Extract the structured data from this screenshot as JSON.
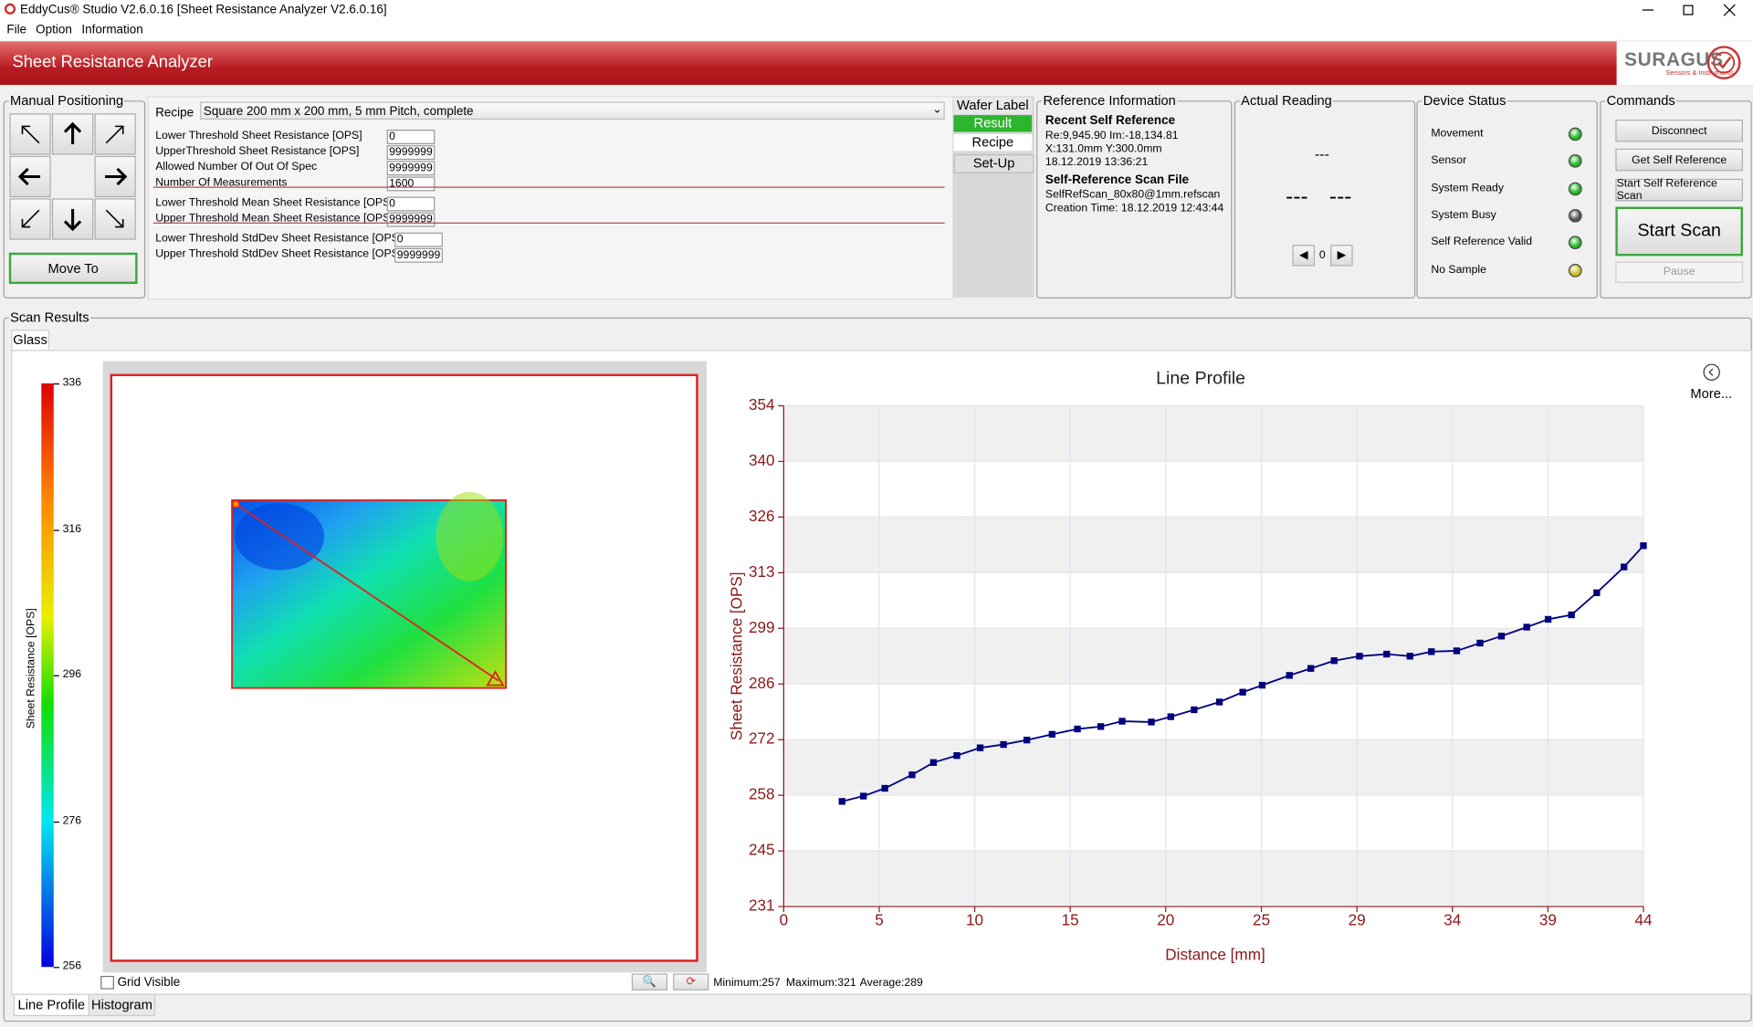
{
  "window": {
    "title": "EddyCus® Studio V2.6.0.16 [Sheet Resistance Analyzer V2.6.0.16]",
    "menu": [
      "File",
      "Option",
      "Information"
    ]
  },
  "header": {
    "title": "Sheet Resistance Analyzer",
    "logo": "SURAGUS",
    "logo_sub": "Sensors & Instruments"
  },
  "manual_positioning": {
    "title": "Manual Positioning",
    "button": "Move To"
  },
  "recipe": {
    "label": "Recipe",
    "value": "Square 200 mm x 200 mm, 5 mm Pitch, complete",
    "groups": [
      [
        {
          "label": "Lower Threshold Sheet Resistance [OPS]",
          "value": "0"
        },
        {
          "label": "UpperThreshold Sheet Resistance [OPS]",
          "value": "9999999"
        },
        {
          "label": "Allowed Number Of Out Of Spec",
          "value": "9999999"
        },
        {
          "label": "Number Of Measurements",
          "value": "1600"
        }
      ],
      [
        {
          "label": "Lower Threshold Mean Sheet Resistance [OPS]",
          "value": "0"
        },
        {
          "label": "Upper Threshold Mean Sheet Resistance [OPS]",
          "value": "9999999"
        }
      ],
      [
        {
          "label": "Lower Threshold StdDev Sheet Resistance [OPS]",
          "value": "0"
        },
        {
          "label": "Upper Threshold StdDev Sheet Resistance [OPS]",
          "value": "9999999"
        }
      ]
    ],
    "tabs": [
      "Wafer Label",
      "Result",
      "Recipe",
      "Set-Up"
    ]
  },
  "reference": {
    "title": "Reference Information",
    "recent_title": "Recent Self Reference",
    "recent": [
      "Re:9,945.90 Im:-18,134.81",
      "X:131.0mm Y:300.0mm",
      "18.12.2019 13:36:21"
    ],
    "file_title": "Self-Reference Scan File",
    "file": [
      "SelfRefScan_80x80@1mm.refscan",
      "Creation Time: 18.12.2019 12:43:44"
    ]
  },
  "actual_reading": {
    "title": "Actual Reading",
    "top": "---",
    "bottom": [
      "---",
      "---"
    ],
    "index": "0"
  },
  "device_status": {
    "title": "Device Status",
    "items": [
      {
        "label": "Movement",
        "color": "#22b822"
      },
      {
        "label": "Sensor",
        "color": "#22b822"
      },
      {
        "label": "System Ready",
        "color": "#22b822"
      },
      {
        "label": "System Busy",
        "color": "#555555"
      },
      {
        "label": "Self Reference Valid",
        "color": "#22b822"
      },
      {
        "label": "No Sample",
        "color": "#c8c020"
      }
    ]
  },
  "commands": {
    "title": "Commands",
    "buttons": [
      "Disconnect",
      "Get Self Reference",
      "Start Self Reference Scan"
    ],
    "start": "Start Scan",
    "pause": "Pause"
  },
  "scan_results": {
    "title": "Scan Results",
    "tab": "Glass",
    "grid_visible": "Grid Visible",
    "stats": [
      "Minimum:257",
      "Maximum:321",
      "Average:289"
    ],
    "bottom_tabs": [
      "Line Profile",
      "Histogram"
    ],
    "more": "More..."
  },
  "colorbar": {
    "label": "Sheet Resistance [OPS]",
    "lim": [
      256,
      336
    ],
    "ticks": [
      256,
      276,
      296,
      316,
      336
    ]
  },
  "chart_data": {
    "type": "line",
    "title": "Line Profile",
    "x_label": "Distance [mm]",
    "y_label": "Sheet Resistance [OPS]",
    "color": "#00007f",
    "grid": true,
    "x": [
      3.0,
      4.1,
      5.2,
      6.6,
      7.7,
      8.9,
      10.1,
      11.3,
      12.5,
      13.8,
      15.1,
      16.3,
      17.4,
      18.9,
      19.9,
      21.1,
      22.4,
      23.6,
      24.6,
      26.0,
      27.1,
      28.3,
      29.6,
      31.0,
      32.2,
      33.3,
      34.6,
      35.8,
      36.9,
      38.2,
      39.3,
      40.5,
      41.8,
      43.2,
      44.2
    ],
    "values": [
      256.9,
      258.2,
      260.1,
      263.4,
      266.4,
      268.1,
      270.0,
      270.8,
      271.9,
      273.3,
      274.6,
      275.2,
      276.5,
      276.3,
      277.6,
      279.3,
      281.2,
      283.6,
      285.3,
      287.7,
      289.4,
      291.3,
      292.4,
      292.9,
      292.4,
      293.5,
      293.7,
      295.6,
      297.3,
      299.5,
      301.4,
      302.5,
      307.9,
      314.2,
      319.4
    ],
    "xlim": [
      0,
      44.2
    ],
    "xticks": [
      0,
      {
        "value": 4.91,
        "label": "5"
      },
      {
        "value": 9.82,
        "label": "10"
      },
      {
        "value": 14.73,
        "label": "15"
      },
      {
        "value": 19.64,
        "label": "20"
      },
      {
        "value": 24.56,
        "label": "25"
      },
      {
        "value": 29.47,
        "label": "29"
      },
      {
        "value": 34.38,
        "label": "34"
      },
      {
        "value": 39.29,
        "label": "39"
      },
      {
        "value": 44.2,
        "label": "44"
      }
    ],
    "ylim": [
      231.2,
      353.6
    ],
    "yticks": [
      {
        "value": 231.2,
        "label": "231"
      },
      {
        "value": 244.8,
        "label": "245"
      },
      {
        "value": 258.4,
        "label": "258"
      },
      272,
      {
        "value": 285.6,
        "label": "286"
      },
      {
        "value": 299.2,
        "label": "299"
      },
      {
        "value": 312.8,
        "label": "313"
      },
      {
        "value": 326.4,
        "label": "326"
      },
      340,
      {
        "value": 353.6,
        "label": "354"
      }
    ]
  }
}
